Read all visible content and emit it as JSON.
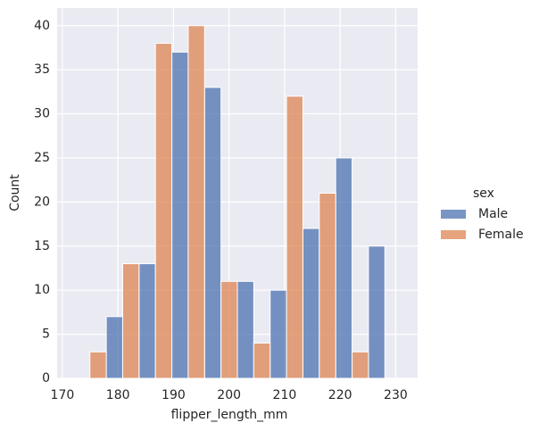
{
  "chart_data": {
    "type": "histogram",
    "xlabel": "flipper_length_mm",
    "ylabel": "Count",
    "bins": [
      172,
      177.9,
      183.8,
      189.7,
      195.6,
      201.5,
      207.4,
      213.3,
      219.2,
      225.1,
      231
    ],
    "series": [
      {
        "name": "Male",
        "color": "#4c72b0",
        "values": [
          0,
          7,
          13,
          37,
          33,
          11,
          10,
          17,
          25,
          15
        ]
      },
      {
        "name": "Female",
        "color": "#dd8452",
        "values": [
          3,
          13,
          38,
          40,
          11,
          4,
          32,
          21,
          3,
          0
        ]
      }
    ],
    "legend_title": "sex",
    "legend_position": "right",
    "xlim": [
      169.05,
      233.95
    ],
    "xticks": [
      170,
      180,
      190,
      200,
      210,
      220,
      230
    ],
    "ylim": [
      0,
      42
    ],
    "yticks": [
      0,
      5,
      10,
      15,
      20,
      25,
      30,
      35,
      40
    ],
    "grid": true
  }
}
